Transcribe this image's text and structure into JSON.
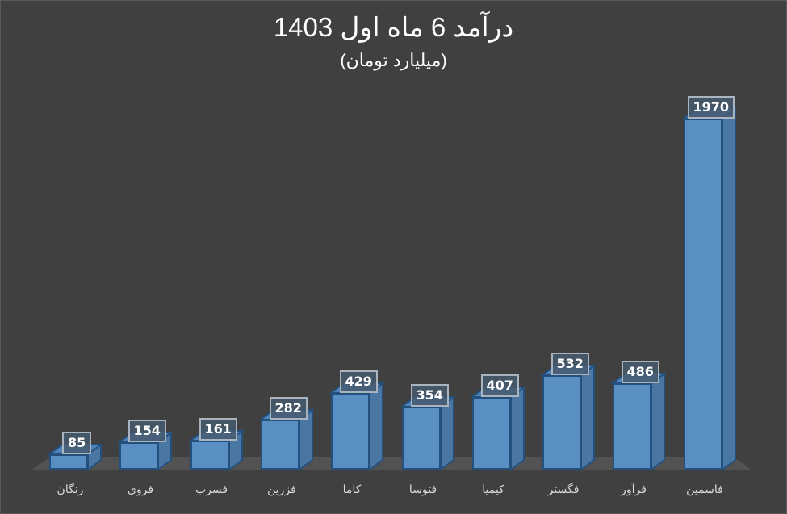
{
  "chart_data": {
    "type": "bar",
    "title": "درآمد 6 ماه اول 1403",
    "subtitle": "(میلیارد تومان)",
    "xlabel": "",
    "ylabel": "",
    "grid": false,
    "legend": null,
    "style": "3d-column",
    "categories": [
      "زنگان",
      "فروی",
      "فسرب",
      "فزرین",
      "کاما",
      "فتوسا",
      "کیمیا",
      "فگستر",
      "فرآور",
      "فاسمین"
    ],
    "values": [
      85,
      154,
      161,
      282,
      429,
      354,
      407,
      532,
      486,
      1970
    ],
    "colors": {
      "bar": "#5a8fc4",
      "bar_border": "#24507e",
      "background": "#404040",
      "text": "#ffffff"
    }
  },
  "labels": {
    "title": "درآمد 6 ماه اول 1403",
    "subtitle": "(میلیارد تومان)",
    "bars": [
      {
        "name": "زنگان",
        "value": "85"
      },
      {
        "name": "فروی",
        "value": "154"
      },
      {
        "name": "فسرب",
        "value": "161"
      },
      {
        "name": "فزرین",
        "value": "282"
      },
      {
        "name": "کاما",
        "value": "429"
      },
      {
        "name": "فتوسا",
        "value": "354"
      },
      {
        "name": "کیمیا",
        "value": "407"
      },
      {
        "name": "فگستر",
        "value": "532"
      },
      {
        "name": "فرآور",
        "value": "486"
      },
      {
        "name": "فاسمین",
        "value": "1970"
      }
    ]
  }
}
